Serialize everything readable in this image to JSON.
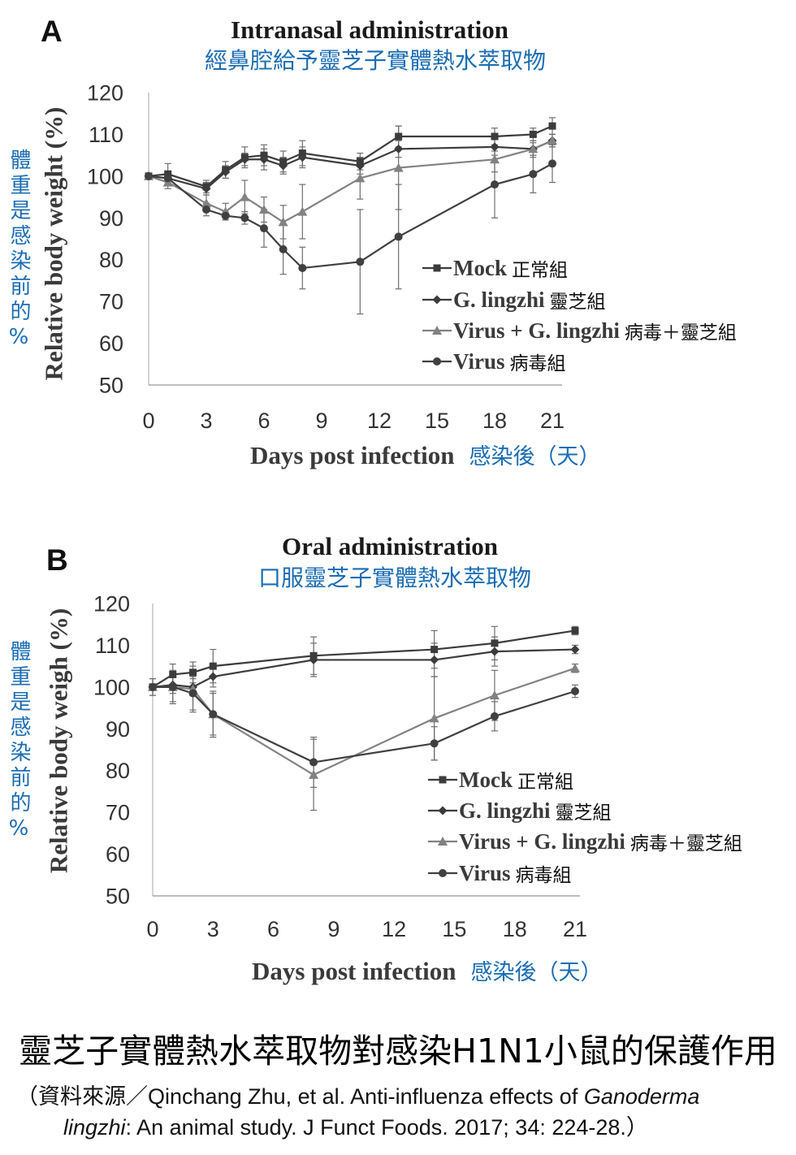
{
  "chart_data": [
    {
      "type": "line",
      "panel_label": "A",
      "title": "Intranasal administration",
      "subtitle": "經鼻腔給予靈芝子實體熱水萃取物",
      "ylabel": "Relative body weight (%)",
      "ylabel_zh": "體重是感染前的%",
      "xlabel": "Days post infection",
      "xlabel_zh": "感染後（天）",
      "xlim": [
        0,
        21
      ],
      "ylim": [
        50,
        120
      ],
      "xticks": [
        0,
        3,
        6,
        9,
        12,
        15,
        18,
        21
      ],
      "yticks": [
        50,
        60,
        70,
        80,
        90,
        100,
        110,
        120
      ],
      "grid": false,
      "legend_position": "center-right",
      "x": [
        0,
        1,
        3,
        4,
        5,
        6,
        7,
        8,
        11,
        13,
        18,
        20,
        21
      ],
      "series": [
        {
          "name": "Mock",
          "label_zh": "正常組",
          "marker": "square",
          "color": "#3c3c3c",
          "values": [
            100,
            100.5,
            97.5,
            101.5,
            104.5,
            105,
            103.5,
            105.5,
            103.5,
            109.5,
            109.5,
            110,
            112
          ],
          "error": [
            0,
            2.5,
            1.5,
            2,
            2.5,
            2.5,
            2.5,
            3,
            2,
            2.5,
            2,
            1.5,
            2
          ]
        },
        {
          "name": "G. lingzhi",
          "label_zh": "靈芝組",
          "marker": "diamond",
          "color": "#3c3c3c",
          "values": [
            100,
            99.5,
            97,
            101,
            104,
            104,
            102.5,
            104.5,
            102.5,
            106.5,
            107,
            106.5,
            108.5
          ],
          "error": [
            0,
            1.5,
            1.5,
            1.5,
            1.5,
            2.5,
            2,
            2.5,
            2,
            2,
            2,
            1.5,
            1.5
          ]
        },
        {
          "name": "Virus + G. lingzhi",
          "label_zh": "病毒＋靈芝組",
          "marker": "triangle",
          "color": "#828282",
          "values": [
            100,
            98.5,
            93.5,
            91.5,
            95,
            92,
            89,
            91.5,
            99.5,
            102,
            104,
            106.5,
            108.5
          ],
          "error": [
            0,
            1.5,
            2,
            2,
            4,
            3,
            4,
            6.5,
            5,
            10,
            3,
            2,
            1.5
          ]
        },
        {
          "name": "Virus",
          "label_zh": "病毒組",
          "marker": "circle",
          "color": "#404040",
          "values": [
            100,
            99.5,
            92,
            90.5,
            90,
            87.5,
            82.5,
            78,
            79.5,
            85.5,
            98,
            100.5,
            103
          ],
          "error": [
            0,
            1,
            1.5,
            1,
            1.5,
            4.5,
            6,
            5,
            12.5,
            12.5,
            8,
            4.5,
            4.5
          ]
        }
      ]
    },
    {
      "type": "line",
      "panel_label": "B",
      "title": "Oral administration",
      "subtitle": "口服靈芝子實體熱水萃取物",
      "ylabel": "Relative body weigh (%)",
      "ylabel_zh": "體重是感染前的%",
      "xlabel": "Days post infection",
      "xlabel_zh": "感染後（天）",
      "xlim": [
        0,
        21
      ],
      "ylim": [
        50,
        120
      ],
      "xticks": [
        0,
        3,
        6,
        9,
        12,
        15,
        18,
        21
      ],
      "yticks": [
        50,
        60,
        70,
        80,
        90,
        100,
        110,
        120
      ],
      "grid": false,
      "legend_position": "bottom-right",
      "x": [
        0,
        1,
        2,
        3,
        8,
        14,
        17,
        21
      ],
      "series": [
        {
          "name": "Mock",
          "label_zh": "正常組",
          "marker": "square",
          "color": "#3c3c3c",
          "values": [
            100,
            103,
            103.5,
            105,
            107.5,
            109,
            110.5,
            113.5
          ],
          "error": [
            0,
            2.5,
            2.5,
            4,
            4.5,
            4.5,
            4,
            1
          ]
        },
        {
          "name": "G. lingzhi",
          "label_zh": "靈芝組",
          "marker": "diamond",
          "color": "#3c3c3c",
          "values": [
            100,
            100.5,
            100,
            102.5,
            106.5,
            106.5,
            108.5,
            109
          ],
          "error": [
            2,
            2,
            2,
            2.5,
            4,
            4,
            3.5,
            1
          ]
        },
        {
          "name": "Virus + G. lingzhi",
          "label_zh": "病毒＋靈芝組",
          "marker": "triangle",
          "color": "#828282",
          "values": [
            100,
            100,
            99.5,
            93.5,
            79,
            92.5,
            98,
            104.5
          ],
          "error": [
            0,
            4,
            5.5,
            5.5,
            8.5,
            10,
            6,
            1
          ]
        },
        {
          "name": "Virus",
          "label_zh": "病毒組",
          "marker": "circle",
          "color": "#404040",
          "values": [
            100,
            100,
            98.5,
            93.5,
            82,
            86.5,
            93,
            99
          ],
          "error": [
            2,
            3.5,
            4,
            5,
            6,
            4,
            3.5,
            1.5
          ]
        }
      ]
    }
  ],
  "caption": {
    "title": "靈芝子實體熱水萃取物對感染H1N1小鼠的保護作用",
    "citation_line1": "（資料來源／Qinchang Zhu, et al. Anti-influenza effects of ",
    "citation_genus": "Ganoderma",
    "citation_species": "lingzhi",
    "citation_line2": ": An animal study. J Funct Foods. 2017; 34: 224-28.）"
  }
}
